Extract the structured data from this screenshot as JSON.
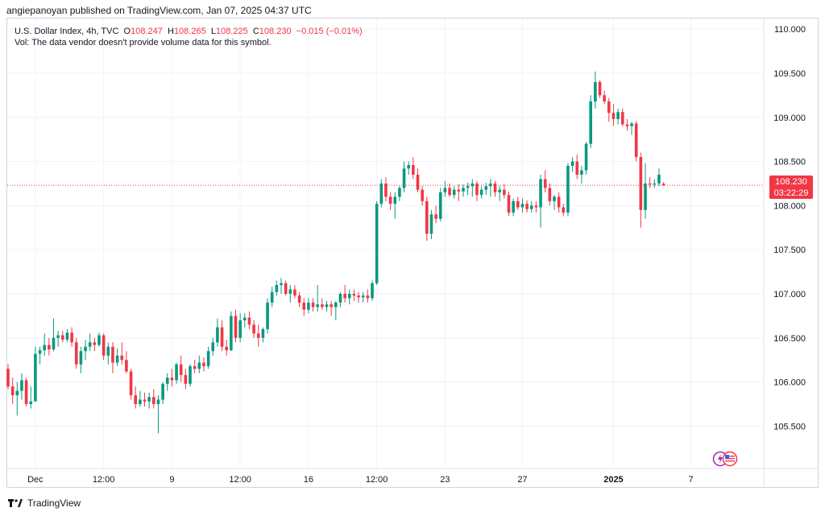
{
  "header": {
    "publisher": "angiepanoyan published on TradingView.com, Jan 07, 2025 04:37 UTC"
  },
  "legend": {
    "symbol": "U.S. Dollar Index, 4h, TVC",
    "o_label": "O",
    "o_value": "108.247",
    "h_label": "H",
    "h_value": "108.265",
    "l_label": "L",
    "l_value": "108.225",
    "c_label": "C",
    "c_value": "108.230",
    "change": "−0.015 (−0.01%)",
    "volume_note": "Vol: The data vendor doesn't provide volume data for this symbol."
  },
  "price_badge": {
    "price": "108.230",
    "countdown": "03:22:29"
  },
  "footer": {
    "brand": "TradingView"
  },
  "colors": {
    "up": "#089981",
    "down": "#f23645",
    "grid": "#f0f3fa",
    "axis_text": "#131722",
    "current_line": "#f23645"
  },
  "icons": [
    "tradingview-logo-icon",
    "us-flag-icon",
    "lightning-icon"
  ],
  "chart_data": {
    "type": "candlestick",
    "title": "",
    "xlabel": "",
    "ylabel": "",
    "ylim": [
      105.02,
      110.12
    ],
    "current_price": 108.23,
    "grid": true,
    "y_ticks": [
      "110.000",
      "109.500",
      "109.000",
      "108.500",
      "108.000",
      "107.500",
      "107.000",
      "106.500",
      "106.000",
      "105.500"
    ],
    "x_ticks": [
      {
        "label": "Dec",
        "index": 6
      },
      {
        "label": "12:00",
        "index": 21
      },
      {
        "label": "9",
        "index": 36
      },
      {
        "label": "12:00",
        "index": 51
      },
      {
        "label": "16",
        "index": 66
      },
      {
        "label": "12:00",
        "index": 81
      },
      {
        "label": "23",
        "index": 96
      },
      {
        "label": "27",
        "index": 113
      },
      {
        "label": "2025",
        "index": 133,
        "bold": true
      },
      {
        "label": "7",
        "index": 150
      }
    ],
    "candles": [
      {
        "o": 106.15,
        "h": 106.2,
        "l": 105.92,
        "c": 105.95
      },
      {
        "o": 105.95,
        "h": 106.05,
        "l": 105.75,
        "c": 105.85
      },
      {
        "o": 105.85,
        "h": 106.0,
        "l": 105.62,
        "c": 105.9
      },
      {
        "o": 105.9,
        "h": 106.1,
        "l": 105.8,
        "c": 106.02
      },
      {
        "o": 106.02,
        "h": 106.05,
        "l": 105.72,
        "c": 105.75
      },
      {
        "o": 105.75,
        "h": 105.95,
        "l": 105.7,
        "c": 105.78
      },
      {
        "o": 105.78,
        "h": 106.4,
        "l": 105.78,
        "c": 106.32
      },
      {
        "o": 106.32,
        "h": 106.4,
        "l": 106.2,
        "c": 106.36
      },
      {
        "o": 106.36,
        "h": 106.55,
        "l": 106.3,
        "c": 106.42
      },
      {
        "o": 106.42,
        "h": 106.5,
        "l": 106.3,
        "c": 106.37
      },
      {
        "o": 106.37,
        "h": 106.72,
        "l": 106.35,
        "c": 106.5
      },
      {
        "o": 106.5,
        "h": 106.58,
        "l": 106.4,
        "c": 106.53
      },
      {
        "o": 106.53,
        "h": 106.58,
        "l": 106.45,
        "c": 106.48
      },
      {
        "o": 106.48,
        "h": 106.6,
        "l": 106.45,
        "c": 106.56
      },
      {
        "o": 106.56,
        "h": 106.62,
        "l": 106.4,
        "c": 106.45
      },
      {
        "o": 106.45,
        "h": 106.5,
        "l": 106.15,
        "c": 106.2
      },
      {
        "o": 106.2,
        "h": 106.4,
        "l": 106.1,
        "c": 106.35
      },
      {
        "o": 106.35,
        "h": 106.48,
        "l": 106.25,
        "c": 106.4
      },
      {
        "o": 106.4,
        "h": 106.55,
        "l": 106.35,
        "c": 106.45
      },
      {
        "o": 106.45,
        "h": 106.5,
        "l": 106.35,
        "c": 106.42
      },
      {
        "o": 106.42,
        "h": 106.56,
        "l": 106.4,
        "c": 106.53
      },
      {
        "o": 106.53,
        "h": 106.55,
        "l": 106.25,
        "c": 106.3
      },
      {
        "o": 106.3,
        "h": 106.45,
        "l": 106.2,
        "c": 106.4
      },
      {
        "o": 106.4,
        "h": 106.45,
        "l": 106.1,
        "c": 106.22
      },
      {
        "o": 106.22,
        "h": 106.38,
        "l": 106.18,
        "c": 106.3
      },
      {
        "o": 106.3,
        "h": 106.45,
        "l": 106.2,
        "c": 106.25
      },
      {
        "o": 106.25,
        "h": 106.35,
        "l": 106.1,
        "c": 106.12
      },
      {
        "o": 106.12,
        "h": 106.15,
        "l": 105.8,
        "c": 105.85
      },
      {
        "o": 105.85,
        "h": 105.95,
        "l": 105.7,
        "c": 105.75
      },
      {
        "o": 105.75,
        "h": 105.9,
        "l": 105.72,
        "c": 105.8
      },
      {
        "o": 105.8,
        "h": 105.88,
        "l": 105.72,
        "c": 105.78
      },
      {
        "o": 105.78,
        "h": 105.88,
        "l": 105.7,
        "c": 105.83
      },
      {
        "o": 105.83,
        "h": 105.92,
        "l": 105.7,
        "c": 105.75
      },
      {
        "o": 105.75,
        "h": 105.85,
        "l": 105.42,
        "c": 105.8
      },
      {
        "o": 105.8,
        "h": 106.0,
        "l": 105.75,
        "c": 105.98
      },
      {
        "o": 105.98,
        "h": 106.1,
        "l": 105.9,
        "c": 106.05
      },
      {
        "o": 106.05,
        "h": 106.15,
        "l": 105.95,
        "c": 106.02
      },
      {
        "o": 106.02,
        "h": 106.22,
        "l": 105.98,
        "c": 106.2
      },
      {
        "o": 106.2,
        "h": 106.3,
        "l": 106.0,
        "c": 106.08
      },
      {
        "o": 106.08,
        "h": 106.15,
        "l": 105.92,
        "c": 105.98
      },
      {
        "o": 105.98,
        "h": 106.2,
        "l": 105.95,
        "c": 106.18
      },
      {
        "o": 106.18,
        "h": 106.25,
        "l": 106.1,
        "c": 106.15
      },
      {
        "o": 106.15,
        "h": 106.3,
        "l": 106.1,
        "c": 106.22
      },
      {
        "o": 106.22,
        "h": 106.28,
        "l": 106.12,
        "c": 106.18
      },
      {
        "o": 106.18,
        "h": 106.4,
        "l": 106.15,
        "c": 106.35
      },
      {
        "o": 106.35,
        "h": 106.5,
        "l": 106.3,
        "c": 106.45
      },
      {
        "o": 106.45,
        "h": 106.72,
        "l": 106.4,
        "c": 106.62
      },
      {
        "o": 106.62,
        "h": 106.7,
        "l": 106.35,
        "c": 106.4
      },
      {
        "o": 106.4,
        "h": 106.48,
        "l": 106.3,
        "c": 106.36
      },
      {
        "o": 106.36,
        "h": 106.8,
        "l": 106.35,
        "c": 106.75
      },
      {
        "o": 106.75,
        "h": 106.82,
        "l": 106.45,
        "c": 106.5
      },
      {
        "o": 106.5,
        "h": 106.78,
        "l": 106.45,
        "c": 106.7
      },
      {
        "o": 106.7,
        "h": 106.78,
        "l": 106.62,
        "c": 106.73
      },
      {
        "o": 106.73,
        "h": 106.8,
        "l": 106.6,
        "c": 106.65
      },
      {
        "o": 106.65,
        "h": 106.7,
        "l": 106.5,
        "c": 106.55
      },
      {
        "o": 106.55,
        "h": 106.65,
        "l": 106.4,
        "c": 106.5
      },
      {
        "o": 106.5,
        "h": 106.62,
        "l": 106.45,
        "c": 106.6
      },
      {
        "o": 106.6,
        "h": 106.95,
        "l": 106.55,
        "c": 106.9
      },
      {
        "o": 106.9,
        "h": 107.08,
        "l": 106.85,
        "c": 107.02
      },
      {
        "o": 107.02,
        "h": 107.15,
        "l": 106.98,
        "c": 107.1
      },
      {
        "o": 107.1,
        "h": 107.18,
        "l": 107.0,
        "c": 107.12
      },
      {
        "o": 107.12,
        "h": 107.15,
        "l": 106.98,
        "c": 107.0
      },
      {
        "o": 107.0,
        "h": 107.1,
        "l": 106.9,
        "c": 107.05
      },
      {
        "o": 107.05,
        "h": 107.1,
        "l": 106.95,
        "c": 106.98
      },
      {
        "o": 106.98,
        "h": 107.02,
        "l": 106.85,
        "c": 106.9
      },
      {
        "o": 106.9,
        "h": 106.95,
        "l": 106.75,
        "c": 106.82
      },
      {
        "o": 106.82,
        "h": 106.95,
        "l": 106.78,
        "c": 106.9
      },
      {
        "o": 106.9,
        "h": 106.95,
        "l": 106.8,
        "c": 106.85
      },
      {
        "o": 106.85,
        "h": 107.1,
        "l": 106.8,
        "c": 106.88
      },
      {
        "o": 106.88,
        "h": 106.95,
        "l": 106.82,
        "c": 106.85
      },
      {
        "o": 106.85,
        "h": 106.92,
        "l": 106.8,
        "c": 106.88
      },
      {
        "o": 106.88,
        "h": 106.92,
        "l": 106.75,
        "c": 106.85
      },
      {
        "o": 106.85,
        "h": 106.92,
        "l": 106.7,
        "c": 106.9
      },
      {
        "o": 106.9,
        "h": 107.02,
        "l": 106.85,
        "c": 107.0
      },
      {
        "o": 107.0,
        "h": 107.1,
        "l": 106.9,
        "c": 106.95
      },
      {
        "o": 106.95,
        "h": 107.05,
        "l": 106.88,
        "c": 107.0
      },
      {
        "o": 107.0,
        "h": 107.05,
        "l": 106.92,
        "c": 106.98
      },
      {
        "o": 106.98,
        "h": 107.02,
        "l": 106.9,
        "c": 106.96
      },
      {
        "o": 106.96,
        "h": 107.02,
        "l": 106.9,
        "c": 106.98
      },
      {
        "o": 106.98,
        "h": 107.05,
        "l": 106.9,
        "c": 106.95
      },
      {
        "o": 106.95,
        "h": 107.15,
        "l": 106.92,
        "c": 107.12
      },
      {
        "o": 107.12,
        "h": 108.05,
        "l": 107.1,
        "c": 108.02
      },
      {
        "o": 108.02,
        "h": 108.3,
        "l": 107.98,
        "c": 108.25
      },
      {
        "o": 108.25,
        "h": 108.32,
        "l": 108.05,
        "c": 108.1
      },
      {
        "o": 108.1,
        "h": 108.15,
        "l": 107.95,
        "c": 108.02
      },
      {
        "o": 108.02,
        "h": 108.15,
        "l": 107.85,
        "c": 108.1
      },
      {
        "o": 108.1,
        "h": 108.22,
        "l": 108.05,
        "c": 108.2
      },
      {
        "o": 108.2,
        "h": 108.5,
        "l": 108.15,
        "c": 108.42
      },
      {
        "o": 108.42,
        "h": 108.5,
        "l": 108.35,
        "c": 108.46
      },
      {
        "o": 108.46,
        "h": 108.55,
        "l": 108.3,
        "c": 108.35
      },
      {
        "o": 108.35,
        "h": 108.42,
        "l": 108.15,
        "c": 108.18
      },
      {
        "o": 108.18,
        "h": 108.22,
        "l": 108.0,
        "c": 108.05
      },
      {
        "o": 108.05,
        "h": 108.1,
        "l": 107.6,
        "c": 107.68
      },
      {
        "o": 107.68,
        "h": 107.95,
        "l": 107.62,
        "c": 107.9
      },
      {
        "o": 107.9,
        "h": 108.0,
        "l": 107.8,
        "c": 107.85
      },
      {
        "o": 107.85,
        "h": 108.2,
        "l": 107.82,
        "c": 108.15
      },
      {
        "o": 108.15,
        "h": 108.28,
        "l": 108.1,
        "c": 108.2
      },
      {
        "o": 108.2,
        "h": 108.25,
        "l": 108.1,
        "c": 108.12
      },
      {
        "o": 108.12,
        "h": 108.22,
        "l": 108.08,
        "c": 108.18
      },
      {
        "o": 108.18,
        "h": 108.24,
        "l": 108.05,
        "c": 108.16
      },
      {
        "o": 108.16,
        "h": 108.24,
        "l": 108.1,
        "c": 108.2
      },
      {
        "o": 108.2,
        "h": 108.26,
        "l": 108.12,
        "c": 108.22
      },
      {
        "o": 108.22,
        "h": 108.3,
        "l": 108.1,
        "c": 108.25
      },
      {
        "o": 108.25,
        "h": 108.28,
        "l": 108.05,
        "c": 108.12
      },
      {
        "o": 108.12,
        "h": 108.22,
        "l": 108.08,
        "c": 108.18
      },
      {
        "o": 108.18,
        "h": 108.26,
        "l": 108.12,
        "c": 108.22
      },
      {
        "o": 108.22,
        "h": 108.3,
        "l": 108.1,
        "c": 108.25
      },
      {
        "o": 108.25,
        "h": 108.28,
        "l": 108.1,
        "c": 108.15
      },
      {
        "o": 108.15,
        "h": 108.22,
        "l": 108.05,
        "c": 108.18
      },
      {
        "o": 108.18,
        "h": 108.24,
        "l": 108.08,
        "c": 108.12
      },
      {
        "o": 108.12,
        "h": 108.16,
        "l": 107.88,
        "c": 107.92
      },
      {
        "o": 107.92,
        "h": 108.08,
        "l": 107.88,
        "c": 108.05
      },
      {
        "o": 108.05,
        "h": 108.1,
        "l": 107.95,
        "c": 107.98
      },
      {
        "o": 107.98,
        "h": 108.08,
        "l": 107.92,
        "c": 108.02
      },
      {
        "o": 108.02,
        "h": 108.06,
        "l": 107.92,
        "c": 107.96
      },
      {
        "o": 107.96,
        "h": 108.05,
        "l": 107.92,
        "c": 108.0
      },
      {
        "o": 108.0,
        "h": 108.05,
        "l": 107.92,
        "c": 107.98
      },
      {
        "o": 107.98,
        "h": 108.35,
        "l": 107.75,
        "c": 108.3
      },
      {
        "o": 108.3,
        "h": 108.4,
        "l": 108.15,
        "c": 108.2
      },
      {
        "o": 108.2,
        "h": 108.25,
        "l": 108.0,
        "c": 108.05
      },
      {
        "o": 108.05,
        "h": 108.12,
        "l": 107.95,
        "c": 108.1
      },
      {
        "o": 108.1,
        "h": 108.15,
        "l": 107.92,
        "c": 107.98
      },
      {
        "o": 107.98,
        "h": 108.02,
        "l": 107.88,
        "c": 107.92
      },
      {
        "o": 107.92,
        "h": 108.48,
        "l": 107.88,
        "c": 108.45
      },
      {
        "o": 108.45,
        "h": 108.55,
        "l": 108.38,
        "c": 108.5
      },
      {
        "o": 108.5,
        "h": 108.58,
        "l": 108.3,
        "c": 108.35
      },
      {
        "o": 108.35,
        "h": 108.45,
        "l": 108.25,
        "c": 108.4
      },
      {
        "o": 108.4,
        "h": 108.72,
        "l": 108.35,
        "c": 108.7
      },
      {
        "o": 108.7,
        "h": 109.25,
        "l": 108.65,
        "c": 109.18
      },
      {
        "o": 109.18,
        "h": 109.52,
        "l": 109.1,
        "c": 109.4
      },
      {
        "o": 109.4,
        "h": 109.42,
        "l": 109.22,
        "c": 109.25
      },
      {
        "o": 109.25,
        "h": 109.3,
        "l": 109.15,
        "c": 109.18
      },
      {
        "o": 109.18,
        "h": 109.22,
        "l": 108.95,
        "c": 109.05
      },
      {
        "o": 109.05,
        "h": 109.15,
        "l": 108.9,
        "c": 108.98
      },
      {
        "o": 108.98,
        "h": 109.1,
        "l": 108.92,
        "c": 109.06
      },
      {
        "o": 109.06,
        "h": 109.1,
        "l": 108.9,
        "c": 108.92
      },
      {
        "o": 108.92,
        "h": 108.98,
        "l": 108.85,
        "c": 108.9
      },
      {
        "o": 108.9,
        "h": 108.95,
        "l": 108.8,
        "c": 108.93
      },
      {
        "o": 108.93,
        "h": 108.96,
        "l": 108.5,
        "c": 108.55
      },
      {
        "o": 108.55,
        "h": 108.6,
        "l": 107.75,
        "c": 107.95
      },
      {
        "o": 107.95,
        "h": 108.48,
        "l": 107.85,
        "c": 108.25
      },
      {
        "o": 108.25,
        "h": 108.32,
        "l": 108.2,
        "c": 108.24
      },
      {
        "o": 108.24,
        "h": 108.3,
        "l": 108.2,
        "c": 108.25
      },
      {
        "o": 108.25,
        "h": 108.42,
        "l": 108.22,
        "c": 108.35
      },
      {
        "o": 108.247,
        "h": 108.265,
        "l": 108.225,
        "c": 108.23
      }
    ]
  }
}
